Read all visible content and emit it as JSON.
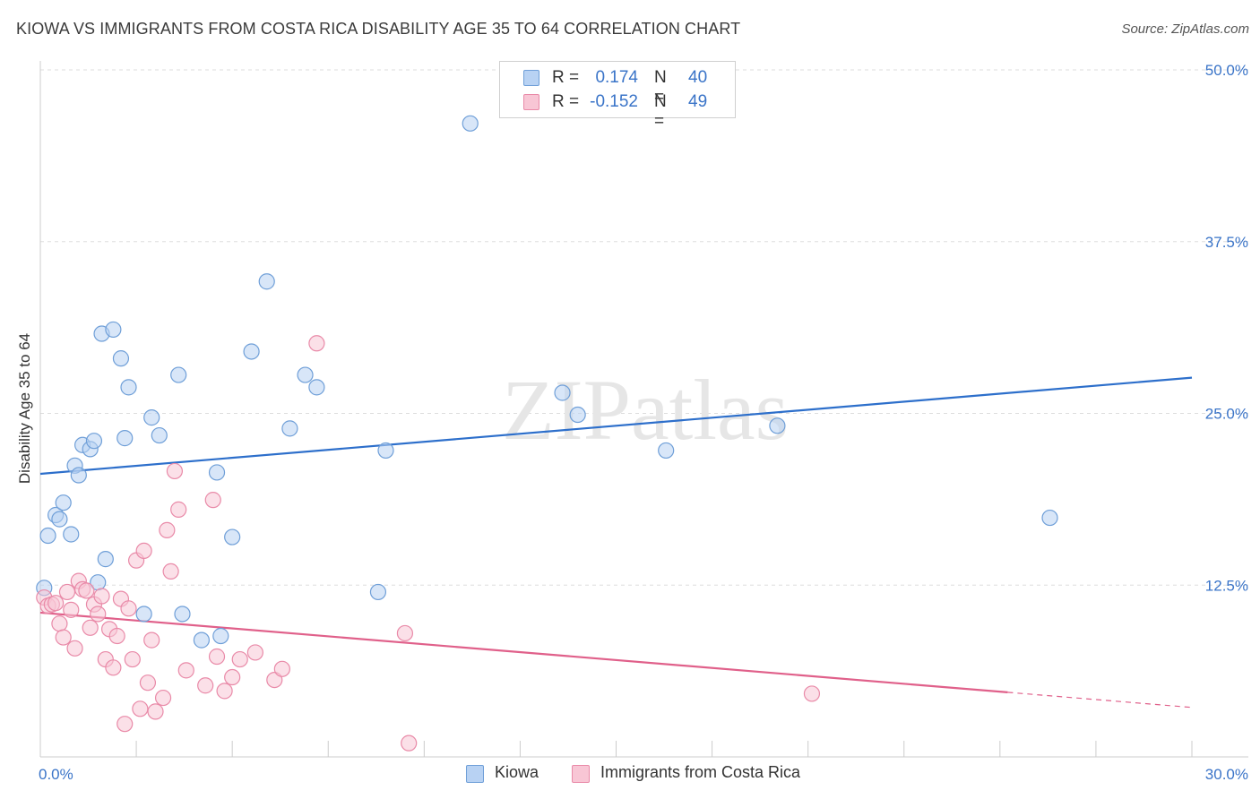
{
  "title": "KIOWA VS IMMIGRANTS FROM COSTA RICA DISABILITY AGE 35 TO 64 CORRELATION CHART",
  "source": "Source: ZipAtlas.com",
  "watermark": "ZIPatlas",
  "colors": {
    "kiowa_fill": "#b8d2f3",
    "kiowa_stroke": "#6f9fd8",
    "kiowa_line": "#2d6fcb",
    "costa_fill": "#f8c6d5",
    "costa_stroke": "#e98aa8",
    "costa_line": "#e0608a",
    "axis_label": "#3a74c8",
    "grid": "#dddddd"
  },
  "legend": {
    "rows": [
      {
        "r_label": "R =",
        "r_value": "0.174",
        "n_label": "N =",
        "n_value": "40"
      },
      {
        "r_label": "R =",
        "r_value": "-0.152",
        "n_label": "N =",
        "n_value": "49"
      }
    ]
  },
  "chart_data": {
    "type": "scatter",
    "title": "KIOWA VS IMMIGRANTS FROM COSTA RICA DISABILITY AGE 35 TO 64 CORRELATION CHART",
    "xlabel": "",
    "ylabel": "Disability Age 35 to 64",
    "xlim": [
      0,
      30
    ],
    "ylim": [
      0,
      50
    ],
    "x_tick_labels": [
      "0.0%",
      "30.0%"
    ],
    "y_ticks": [
      12.5,
      25.0,
      37.5,
      50.0
    ],
    "y_tick_labels": [
      "12.5%",
      "25.0%",
      "37.5%",
      "50.0%"
    ],
    "grid": true,
    "legend_position": "top-center",
    "series": [
      {
        "name": "Kiowa",
        "points": [
          [
            0.1,
            12.3
          ],
          [
            0.2,
            16.1
          ],
          [
            0.4,
            17.6
          ],
          [
            0.5,
            17.3
          ],
          [
            0.6,
            18.5
          ],
          [
            0.8,
            16.2
          ],
          [
            0.9,
            21.2
          ],
          [
            1.0,
            20.5
          ],
          [
            1.1,
            22.7
          ],
          [
            1.3,
            22.4
          ],
          [
            1.4,
            23.0
          ],
          [
            1.5,
            12.7
          ],
          [
            1.6,
            30.8
          ],
          [
            1.7,
            14.4
          ],
          [
            1.9,
            31.1
          ],
          [
            2.1,
            29.0
          ],
          [
            2.2,
            23.2
          ],
          [
            2.3,
            26.9
          ],
          [
            2.7,
            10.4
          ],
          [
            2.9,
            24.7
          ],
          [
            3.1,
            23.4
          ],
          [
            3.6,
            27.8
          ],
          [
            3.7,
            10.4
          ],
          [
            4.2,
            8.5
          ],
          [
            4.6,
            20.7
          ],
          [
            4.7,
            8.8
          ],
          [
            5.0,
            16.0
          ],
          [
            5.5,
            29.5
          ],
          [
            5.9,
            34.6
          ],
          [
            6.5,
            23.9
          ],
          [
            6.9,
            27.8
          ],
          [
            7.2,
            26.9
          ],
          [
            8.8,
            12.0
          ],
          [
            9.0,
            22.3
          ],
          [
            11.2,
            46.1
          ],
          [
            13.6,
            26.5
          ],
          [
            14.0,
            24.9
          ],
          [
            16.3,
            22.3
          ],
          [
            19.2,
            24.1
          ],
          [
            26.3,
            17.4
          ]
        ]
      },
      {
        "name": "Immigrants from Costa Rica",
        "points": [
          [
            0.1,
            11.6
          ],
          [
            0.2,
            11.0
          ],
          [
            0.3,
            11.1
          ],
          [
            0.4,
            11.2
          ],
          [
            0.5,
            9.7
          ],
          [
            0.6,
            8.7
          ],
          [
            0.7,
            12.0
          ],
          [
            0.8,
            10.7
          ],
          [
            0.9,
            7.9
          ],
          [
            1.0,
            12.8
          ],
          [
            1.1,
            12.2
          ],
          [
            1.2,
            12.1
          ],
          [
            1.3,
            9.4
          ],
          [
            1.4,
            11.1
          ],
          [
            1.5,
            10.4
          ],
          [
            1.6,
            11.7
          ],
          [
            1.7,
            7.1
          ],
          [
            1.8,
            9.3
          ],
          [
            1.9,
            6.5
          ],
          [
            2.0,
            8.8
          ],
          [
            2.1,
            11.5
          ],
          [
            2.2,
            2.4
          ],
          [
            2.3,
            10.8
          ],
          [
            2.4,
            7.1
          ],
          [
            2.5,
            14.3
          ],
          [
            2.6,
            3.5
          ],
          [
            2.7,
            15.0
          ],
          [
            2.8,
            5.4
          ],
          [
            2.9,
            8.5
          ],
          [
            3.0,
            3.3
          ],
          [
            3.2,
            4.3
          ],
          [
            3.3,
            16.5
          ],
          [
            3.4,
            13.5
          ],
          [
            3.5,
            20.8
          ],
          [
            3.6,
            18.0
          ],
          [
            3.8,
            6.3
          ],
          [
            4.3,
            5.2
          ],
          [
            4.5,
            18.7
          ],
          [
            4.6,
            7.3
          ],
          [
            4.8,
            4.8
          ],
          [
            5.0,
            5.8
          ],
          [
            5.2,
            7.1
          ],
          [
            5.6,
            7.6
          ],
          [
            6.1,
            5.6
          ],
          [
            6.3,
            6.4
          ],
          [
            7.2,
            30.1
          ],
          [
            9.5,
            9.0
          ],
          [
            9.6,
            1.0
          ],
          [
            20.1,
            4.6
          ]
        ]
      }
    ],
    "trend_lines": [
      {
        "series": "Kiowa",
        "from": [
          0,
          20.6
        ],
        "to": [
          30,
          27.6
        ],
        "style": "solid"
      },
      {
        "series": "Immigrants from Costa Rica",
        "from": [
          0,
          10.5
        ],
        "to": [
          25.2,
          4.7
        ],
        "style": "solid"
      },
      {
        "series": "Immigrants from Costa Rica",
        "from": [
          25.2,
          4.7
        ],
        "to": [
          30,
          3.6
        ],
        "style": "dashed"
      }
    ]
  },
  "bottom_legend": {
    "items": [
      {
        "label": "Kiowa"
      },
      {
        "label": "Immigrants from Costa Rica"
      }
    ]
  }
}
